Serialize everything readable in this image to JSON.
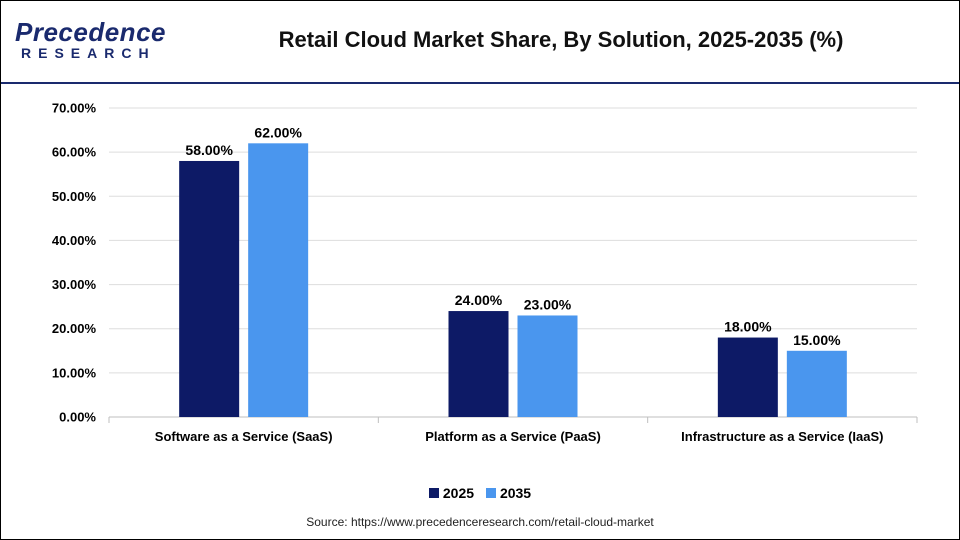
{
  "header": {
    "logo_line1": "Precedence",
    "logo_line2": "RESEARCH",
    "title": "Retail Cloud Market Share, By Solution, 2025-2035 (%)"
  },
  "colors": {
    "series_2025": "#0d1a66",
    "series_2035": "#4a96ee",
    "brand": "#1a2a6e",
    "grid": "#dddddd"
  },
  "chart_data": {
    "type": "bar",
    "title": "Retail Cloud Market Share, By Solution, 2025-2035 (%)",
    "categories": [
      "Software as a Service (SaaS)",
      "Platform as a Service (PaaS)",
      "Infrastructure as a Service (IaaS)"
    ],
    "series": [
      {
        "name": "2025",
        "values": [
          58,
          24,
          18
        ],
        "labels": [
          "58.00%",
          "24.00%",
          "18.00%"
        ]
      },
      {
        "name": "2035",
        "values": [
          62,
          23,
          15
        ],
        "labels": [
          "62.00%",
          "23.00%",
          "15.00%"
        ]
      }
    ],
    "yticks": [
      "0.00%",
      "10.00%",
      "20.00%",
      "30.00%",
      "40.00%",
      "50.00%",
      "60.00%",
      "70.00%"
    ],
    "ylim": [
      0,
      70
    ],
    "xlabel": "",
    "ylabel": "",
    "grid": true,
    "legend_position": "bottom"
  },
  "legend": {
    "item1": "2025",
    "item2": "2035"
  },
  "source": "Source: https://www.precedenceresearch.com/retail-cloud-market"
}
